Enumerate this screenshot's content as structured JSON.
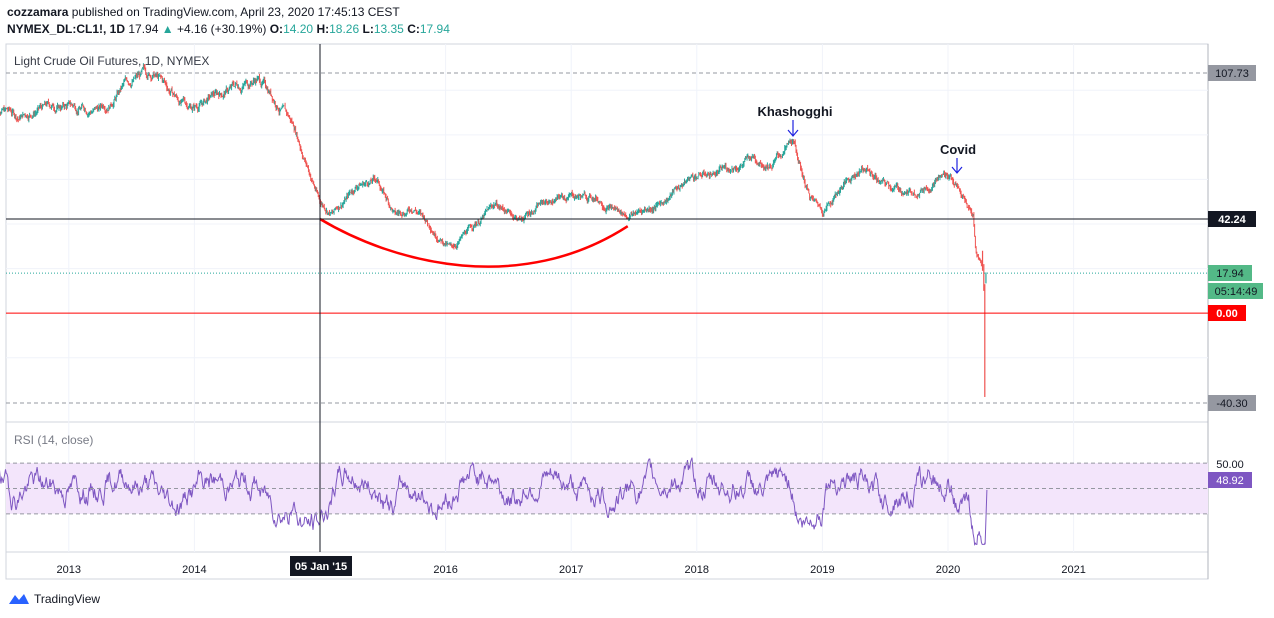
{
  "header": {
    "author": "cozzamara",
    "published": "published on TradingView.com, April 23, 2020 17:45:13 CEST",
    "symbol": "NYMEX_DL:CL1!, 1D",
    "last": "17.94",
    "change": "+4.16 (+30.19%)",
    "o_label": "O:",
    "o": "14.20",
    "h_label": "H:",
    "h": "18.26",
    "l_label": "L:",
    "l": "13.35",
    "c_label": "C:",
    "c": "17.94"
  },
  "brand": {
    "name": "TradingView"
  },
  "colors": {
    "up": "#26a69a",
    "down": "#ef5350",
    "rsi_line": "#7e57c2",
    "rsi_band": "#f3e5fb",
    "zero_line": "#ff0000",
    "arc": "#ff0000",
    "last_price_line": "#26a69a"
  },
  "chart_data": [
    {
      "type": "line",
      "title": "Light Crude Oil Futures, 1D, NYMEX",
      "series": [
        {
          "values_approx": [
            [
              2012.4,
              95
            ],
            [
              2012.6,
              88
            ],
            [
              2012.75,
              92
            ],
            [
              2013.0,
              93
            ],
            [
              2013.25,
              92
            ],
            [
              2013.5,
              105
            ],
            [
              2013.67,
              107.7
            ],
            [
              2013.9,
              94
            ],
            [
              2014.0,
              93
            ],
            [
              2014.3,
              101
            ],
            [
              2014.5,
              106
            ],
            [
              2014.6,
              100
            ],
            [
              2014.8,
              83
            ],
            [
              2014.95,
              58
            ],
            [
              2015.0,
              50
            ],
            [
              2015.1,
              45
            ],
            [
              2015.3,
              58
            ],
            [
              2015.45,
              60
            ],
            [
              2015.6,
              44
            ],
            [
              2015.75,
              48
            ],
            [
              2015.9,
              38
            ],
            [
              2016.05,
              29
            ],
            [
              2016.2,
              38
            ],
            [
              2016.4,
              49
            ],
            [
              2016.6,
              42
            ],
            [
              2016.75,
              49
            ],
            [
              2017.0,
              53
            ],
            [
              2017.2,
              52
            ],
            [
              2017.45,
              44
            ],
            [
              2017.7,
              49
            ],
            [
              2017.95,
              61
            ],
            [
              2018.2,
              64
            ],
            [
              2018.45,
              70
            ],
            [
              2018.6,
              68
            ],
            [
              2018.76,
              76
            ],
            [
              2018.9,
              52
            ],
            [
              2019.0,
              46
            ],
            [
              2019.15,
              57
            ],
            [
              2019.32,
              66
            ],
            [
              2019.5,
              57
            ],
            [
              2019.7,
              54
            ],
            [
              2019.9,
              60
            ],
            [
              2020.02,
              63
            ],
            [
              2020.15,
              48
            ],
            [
              2020.2,
              44
            ],
            [
              2020.22,
              28
            ],
            [
              2020.28,
              21
            ],
            [
              2020.295,
              -37.6
            ],
            [
              2020.31,
              17.94
            ]
          ]
        }
      ],
      "yticks_labeled": [
        "107.73",
        "42.24",
        "17.94",
        "0.00",
        "-40.30"
      ],
      "countdown": "05:14:49",
      "annotations": [
        "Khashogghi",
        "Covid"
      ],
      "crosshair_x_label": "05 Jan '15"
    },
    {
      "type": "line",
      "title": "RSI (14, close)",
      "series": [
        {
          "name": "RSI",
          "last": 48.92
        }
      ],
      "ylabels": [
        "50.00",
        "48.92"
      ]
    }
  ],
  "xaxis": {
    "ticks": [
      "2013",
      "2014",
      "2016",
      "2017",
      "2018",
      "2019",
      "2020",
      "2021"
    ]
  }
}
